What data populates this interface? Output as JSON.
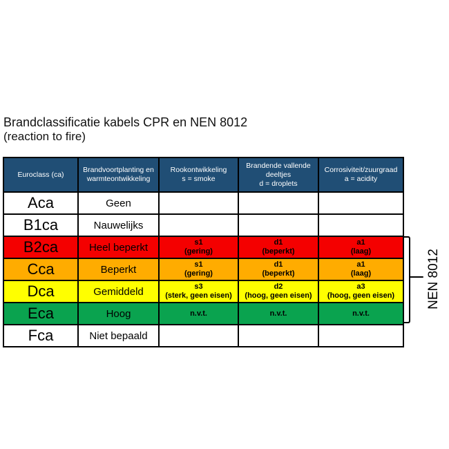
{
  "page": {
    "title": "Brandclassificatie kabels CPR en NEN 8012",
    "subtitle": "(reaction to fire)"
  },
  "colors": {
    "header_bg": "#204E75",
    "header_text": "#FFFFFF",
    "border": "#000000",
    "row_red": "#F40000",
    "row_orange": "#FFAC00",
    "row_yellow": "#FFFF00",
    "row_green": "#0AA34F",
    "row_white": "#FFFFFF"
  },
  "table": {
    "columns": [
      {
        "id": "euroclass",
        "lines": [
          "Euroclass (ca)"
        ]
      },
      {
        "id": "propagation",
        "lines": [
          "Brandvoortplanting en",
          "warmteontwikkeling"
        ]
      },
      {
        "id": "smoke",
        "lines": [
          "Rookontwikkeling",
          "s = smoke"
        ]
      },
      {
        "id": "droplets",
        "lines": [
          "Brandende vallende",
          "deeltjes",
          "d = droplets"
        ]
      },
      {
        "id": "acidity",
        "lines": [
          "Corrosiviteit/zuurgraad",
          "a = acidity"
        ]
      }
    ],
    "rows": [
      {
        "euroclass": "Aca",
        "propagation": "Geen",
        "bg": "#FFFFFF",
        "smoke": {
          "code": "",
          "note": ""
        },
        "droplets": {
          "code": "",
          "note": ""
        },
        "acidity": {
          "code": "",
          "note": ""
        }
      },
      {
        "euroclass": "B1ca",
        "propagation": "Nauwelijks",
        "bg": "#FFFFFF",
        "smoke": {
          "code": "",
          "note": ""
        },
        "droplets": {
          "code": "",
          "note": ""
        },
        "acidity": {
          "code": "",
          "note": ""
        }
      },
      {
        "euroclass": "B2ca",
        "propagation": "Heel beperkt",
        "bg": "#F40000",
        "smoke": {
          "code": "s1",
          "note": "(gering)"
        },
        "droplets": {
          "code": "d1",
          "note": "(beperkt)"
        },
        "acidity": {
          "code": "a1",
          "note": "(laag)"
        }
      },
      {
        "euroclass": "Cca",
        "propagation": "Beperkt",
        "bg": "#FFAC00",
        "smoke": {
          "code": "s1",
          "note": "(gering)"
        },
        "droplets": {
          "code": "d1",
          "note": "(beperkt)"
        },
        "acidity": {
          "code": "a1",
          "note": "(laag)"
        }
      },
      {
        "euroclass": "Dca",
        "propagation": "Gemiddeld",
        "bg": "#FFFF00",
        "smoke": {
          "code": "s3",
          "note": "(sterk, geen eisen)"
        },
        "droplets": {
          "code": "d2",
          "note": "(hoog, geen eisen)"
        },
        "acidity": {
          "code": "a3",
          "note": "(hoog, geen eisen)"
        }
      },
      {
        "euroclass": "Eca",
        "propagation": "Hoog",
        "bg": "#0AA34F",
        "smoke": {
          "code": "n.v.t.",
          "note": ""
        },
        "droplets": {
          "code": "n.v.t.",
          "note": ""
        },
        "acidity": {
          "code": "n.v.t.",
          "note": ""
        }
      },
      {
        "euroclass": "Fca",
        "propagation": "Niet bepaald",
        "bg": "#FFFFFF",
        "smoke": {
          "code": "",
          "note": ""
        },
        "droplets": {
          "code": "",
          "note": ""
        },
        "acidity": {
          "code": "",
          "note": ""
        }
      }
    ]
  },
  "bracket": {
    "label": "NEN 8012"
  }
}
